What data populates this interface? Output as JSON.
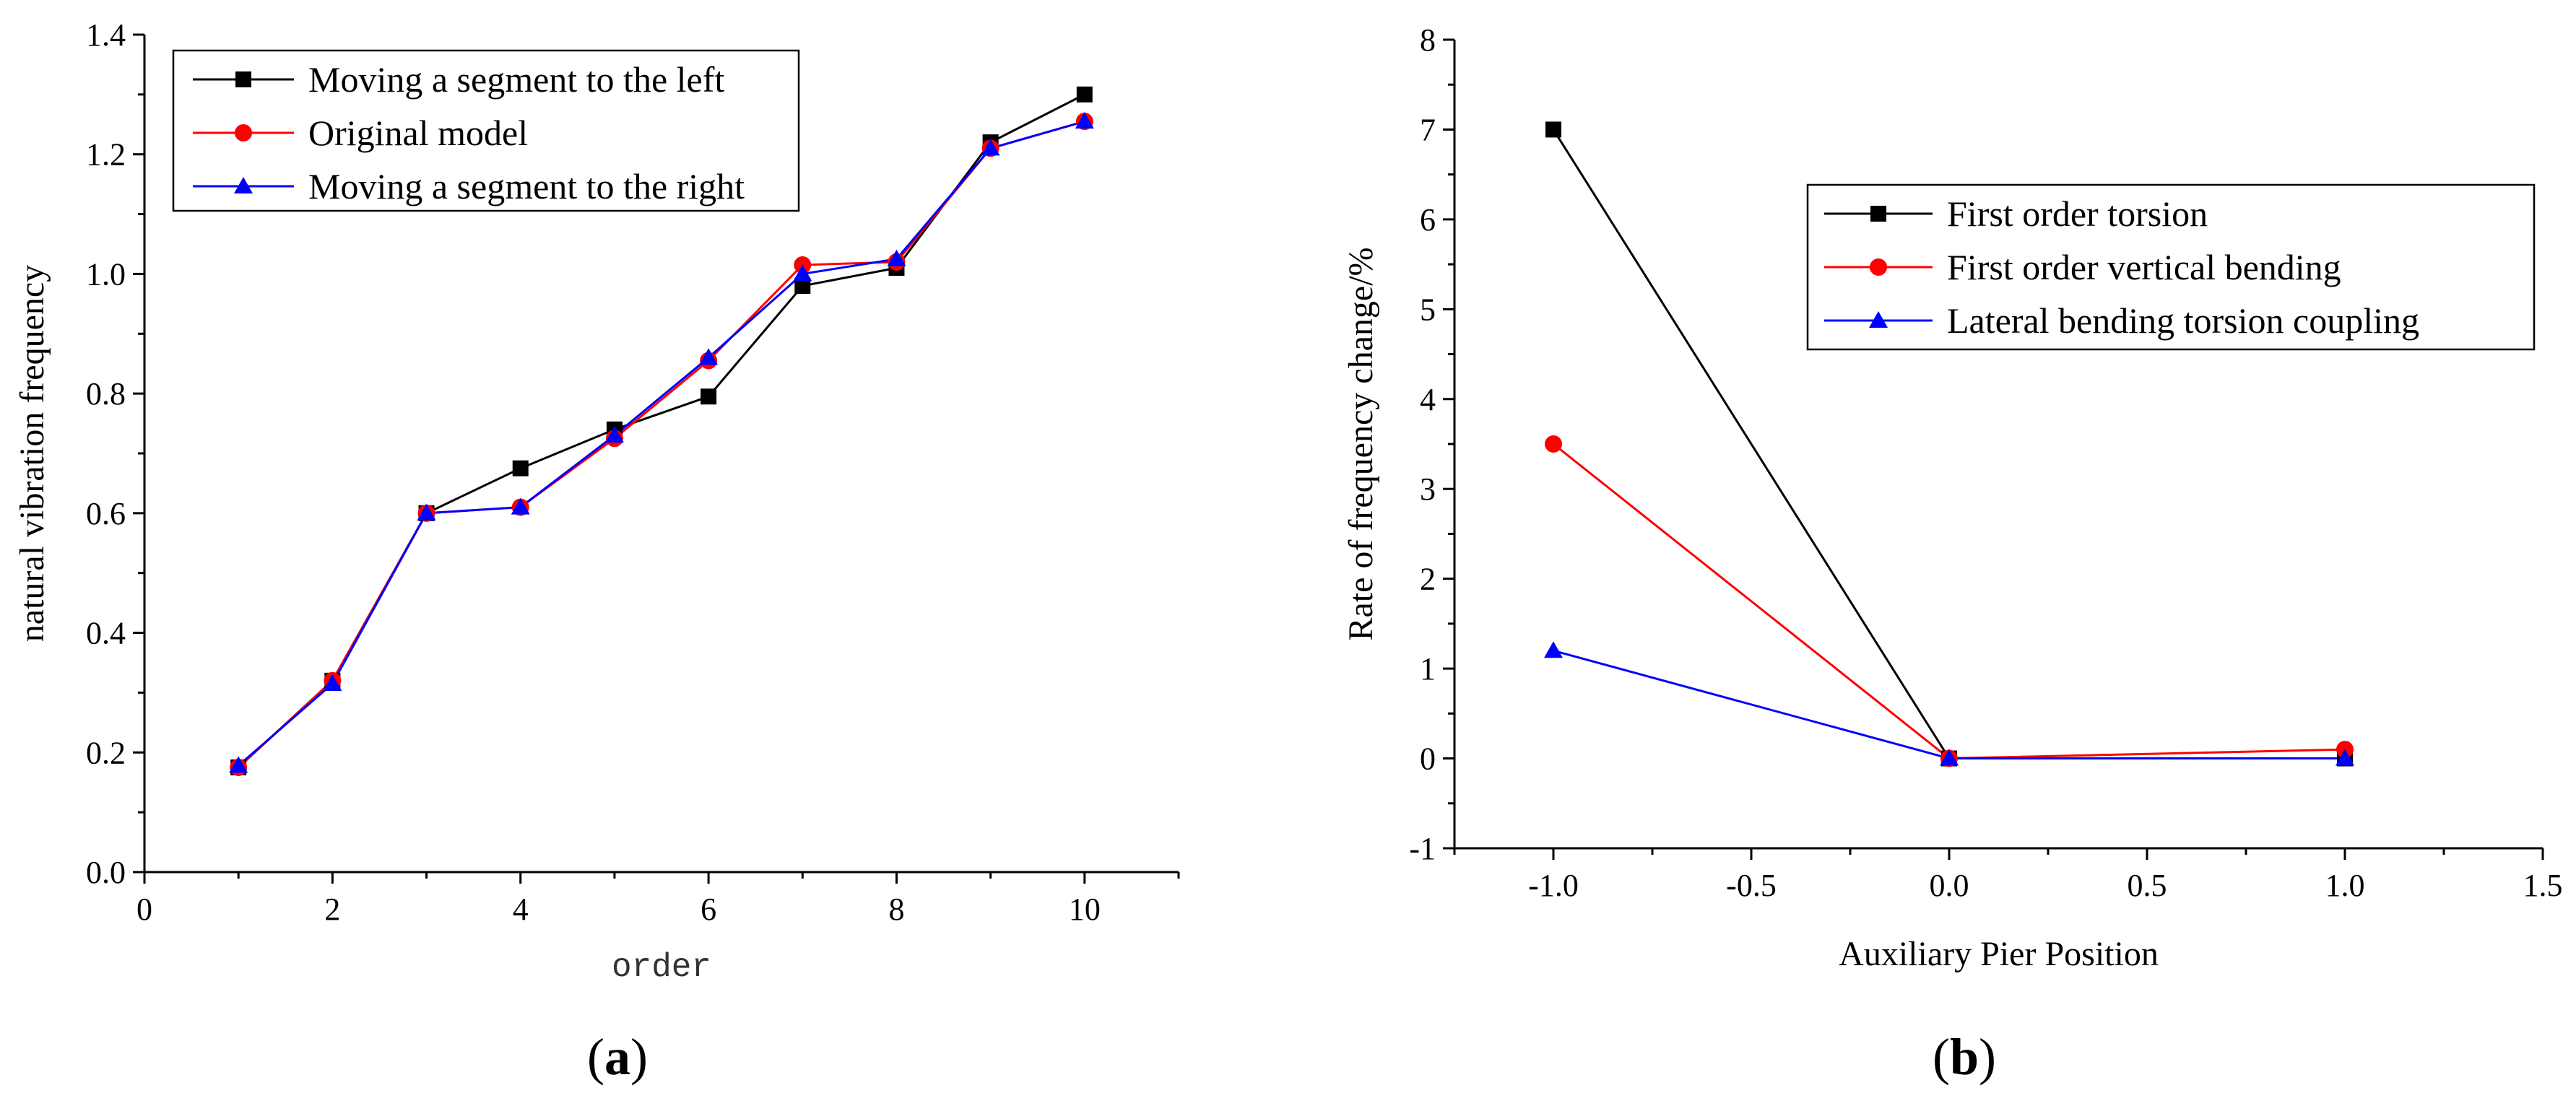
{
  "chart_data": [
    {
      "type": "line",
      "panel_label": "a",
      "xlabel": "order",
      "ylabel": "natural vibration frequency",
      "xlim": [
        0,
        11
      ],
      "ylim": [
        0.0,
        1.4
      ],
      "xticks": [
        0,
        2,
        4,
        6,
        8,
        10
      ],
      "yticks": [
        0.0,
        0.2,
        0.4,
        0.6,
        0.8,
        1.0,
        1.2,
        1.4
      ],
      "xtick_labels": [
        "0",
        "2",
        "4",
        "6",
        "8",
        "10"
      ],
      "ytick_labels": [
        "0.0",
        "0.2",
        "0.4",
        "0.6",
        "0.8",
        "1.0",
        "1.2",
        "1.4"
      ],
      "legend_position": "top-left",
      "x": [
        1,
        2,
        3,
        4,
        5,
        6,
        7,
        8,
        9,
        10
      ],
      "series": [
        {
          "name": "Moving a segment to the left",
          "color": "#000000",
          "marker": "square",
          "values": [
            0.175,
            0.32,
            0.6,
            0.675,
            0.74,
            0.795,
            0.98,
            1.01,
            1.22,
            1.3
          ]
        },
        {
          "name": "Original model",
          "color": "#ff0000",
          "marker": "circle",
          "values": [
            0.175,
            0.32,
            0.6,
            0.61,
            0.725,
            0.855,
            1.015,
            1.02,
            1.21,
            1.255
          ]
        },
        {
          "name": "Moving a segment to the right",
          "color": "#0000ff",
          "marker": "triangle",
          "values": [
            0.178,
            0.315,
            0.6,
            0.61,
            0.73,
            0.86,
            1.0,
            1.025,
            1.21,
            1.255
          ]
        }
      ]
    },
    {
      "type": "line",
      "panel_label": "b",
      "xlabel": "Auxiliary Pier Position",
      "ylabel": "Rate of frequency change/%",
      "xlim": [
        -1.25,
        1.5
      ],
      "ylim": [
        -1,
        8
      ],
      "xticks": [
        -1.0,
        -0.5,
        0.0,
        0.5,
        1.0,
        1.5
      ],
      "yticks": [
        -1,
        0,
        1,
        2,
        3,
        4,
        5,
        6,
        7,
        8
      ],
      "xtick_labels": [
        "-1.0",
        "-0.5",
        "0.0",
        "0.5",
        "1.0",
        "1.5"
      ],
      "ytick_labels": [
        "-1",
        "0",
        "1",
        "2",
        "3",
        "4",
        "5",
        "6",
        "7",
        "8"
      ],
      "legend_position": "top-right",
      "x": [
        -1,
        0,
        1
      ],
      "series": [
        {
          "name": "First order torsion",
          "color": "#000000",
          "marker": "square",
          "values": [
            7.0,
            0.0,
            0.0
          ]
        },
        {
          "name": "First order vertical bending",
          "color": "#ff0000",
          "marker": "circle",
          "values": [
            3.5,
            0.0,
            0.1
          ]
        },
        {
          "name": "Lateral bending torsion coupling",
          "color": "#0000ff",
          "marker": "triangle",
          "values": [
            1.2,
            0.0,
            0.0
          ]
        }
      ]
    }
  ]
}
